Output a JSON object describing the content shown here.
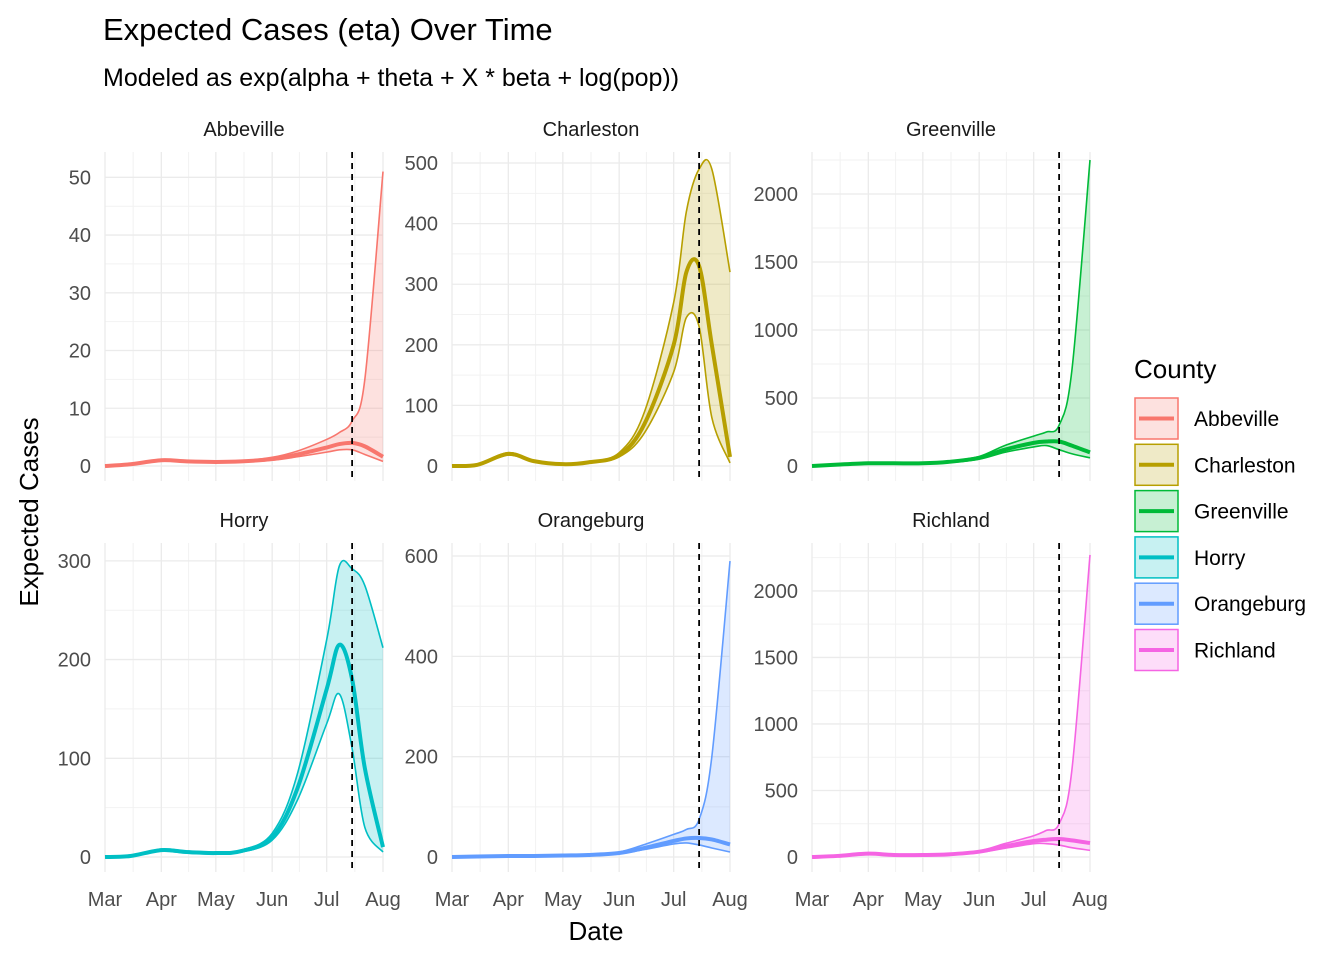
{
  "chart_data": {
    "type": "line",
    "title": "Expected Cases (eta) Over Time",
    "subtitle": "Modeled as exp(alpha + theta + X * beta + log(pop))",
    "xlabel": "Date",
    "ylabel": "Expected Cases",
    "x_tick_labels": [
      "Mar",
      "Apr",
      "May",
      "Jun",
      "Jul",
      "Aug"
    ],
    "x": [
      "Mar 1",
      "Mar 15",
      "Apr 1",
      "Apr 15",
      "May 1",
      "May 15",
      "Jun 1",
      "Jun 15",
      "Jul 1",
      "Jul 8",
      "Jul 15",
      "Jul 22",
      "Aug 1"
    ],
    "reference_line_date": "Jul 15",
    "grid": true,
    "legend": {
      "title": "County",
      "position": "right"
    },
    "panels": [
      {
        "name": "Abbeville",
        "color": "#F8766D",
        "ylim": [
          0,
          53
        ],
        "y_ticks": [
          0,
          10,
          20,
          30,
          40,
          50
        ],
        "series": [
          {
            "name": "mean",
            "values": [
              0,
              0.3,
              1.0,
              0.8,
              0.7,
              0.8,
              1.2,
              2.0,
              3.2,
              3.8,
              4.0,
              3.4,
              1.6
            ]
          },
          {
            "name": "lower",
            "values": [
              0,
              0.3,
              0.9,
              0.7,
              0.6,
              0.7,
              1.0,
              1.6,
              2.4,
              2.8,
              2.8,
              2.0,
              0.8
            ]
          },
          {
            "name": "upper",
            "values": [
              0,
              0.3,
              1.1,
              0.9,
              0.8,
              0.9,
              1.5,
              2.6,
              4.6,
              5.8,
              7.8,
              15.0,
              51.0
            ]
          }
        ]
      },
      {
        "name": "Charleston",
        "color": "#B79F00",
        "ylim": [
          0,
          505
        ],
        "y_ticks": [
          0,
          100,
          200,
          300,
          400,
          500
        ],
        "series": [
          {
            "name": "mean",
            "values": [
              0,
              2,
              20,
              8,
              3,
              6,
              18,
              70,
              200,
              320,
              330,
              200,
              15
            ]
          },
          {
            "name": "lower",
            "values": [
              0,
              2,
              18,
              7,
              2,
              5,
              15,
              55,
              155,
              245,
              230,
              80,
              5
            ]
          },
          {
            "name": "upper",
            "values": [
              0,
              3,
              22,
              9,
              4,
              7,
              22,
              90,
              270,
              420,
              490,
              490,
              320
            ]
          }
        ]
      },
      {
        "name": "Greenville",
        "color": "#00BA38",
        "ylim": [
          0,
          2250
        ],
        "y_ticks": [
          0,
          500,
          1000,
          1500,
          2000
        ],
        "series": [
          {
            "name": "mean",
            "values": [
              0,
              10,
              20,
              20,
              20,
              30,
              60,
              120,
              170,
              180,
              180,
              150,
              100
            ]
          },
          {
            "name": "lower",
            "values": [
              0,
              10,
              20,
              20,
              20,
              25,
              50,
              100,
              140,
              150,
              120,
              90,
              60
            ]
          },
          {
            "name": "upper",
            "values": [
              0,
              10,
              25,
              22,
              22,
              35,
              70,
              150,
              220,
              250,
              300,
              700,
              2250
            ]
          }
        ]
      },
      {
        "name": "Horry",
        "color": "#00BFC4",
        "ylim": [
          0,
          310
        ],
        "y_ticks": [
          0,
          100,
          200,
          300
        ],
        "series": [
          {
            "name": "mean",
            "values": [
              0,
              1,
              7,
              5,
              4,
              6,
              20,
              70,
              170,
              215,
              180,
              90,
              10
            ]
          },
          {
            "name": "lower",
            "values": [
              0,
              1,
              6,
              4,
              3,
              5,
              17,
              58,
              135,
              165,
              110,
              30,
              5
            ]
          },
          {
            "name": "upper",
            "values": [
              0,
              1,
              8,
              6,
              5,
              7,
              24,
              85,
              220,
              295,
              292,
              275,
              212
            ]
          }
        ]
      },
      {
        "name": "Orangeburg",
        "color": "#619CFF",
        "ylim": [
          0,
          610
        ],
        "y_ticks": [
          0,
          200,
          400,
          600
        ],
        "series": [
          {
            "name": "mean",
            "values": [
              0,
              1,
              2,
              2,
              3,
              4,
              8,
              18,
              32,
              37,
              38,
              35,
              25
            ]
          },
          {
            "name": "lower",
            "values": [
              0,
              1,
              2,
              2,
              3,
              3,
              7,
              15,
              26,
              28,
              24,
              18,
              10
            ]
          },
          {
            "name": "upper",
            "values": [
              0,
              1,
              3,
              3,
              3,
              5,
              10,
              25,
              45,
              55,
              75,
              200,
              590
            ]
          }
        ]
      },
      {
        "name": "Richland",
        "color": "#F564E3",
        "ylim": [
          0,
          2300
        ],
        "y_ticks": [
          0,
          500,
          1000,
          1500,
          2000
        ],
        "series": [
          {
            "name": "mean",
            "values": [
              0,
              8,
              25,
              15,
              15,
              20,
              40,
              80,
              120,
              130,
              135,
              125,
              105
            ]
          },
          {
            "name": "lower",
            "values": [
              0,
              8,
              22,
              13,
              13,
              18,
              35,
              65,
              100,
              100,
              90,
              70,
              50
            ]
          },
          {
            "name": "upper",
            "values": [
              0,
              9,
              28,
              17,
              17,
              22,
              45,
              100,
              160,
              200,
              250,
              650,
              2270
            ]
          }
        ]
      }
    ]
  }
}
